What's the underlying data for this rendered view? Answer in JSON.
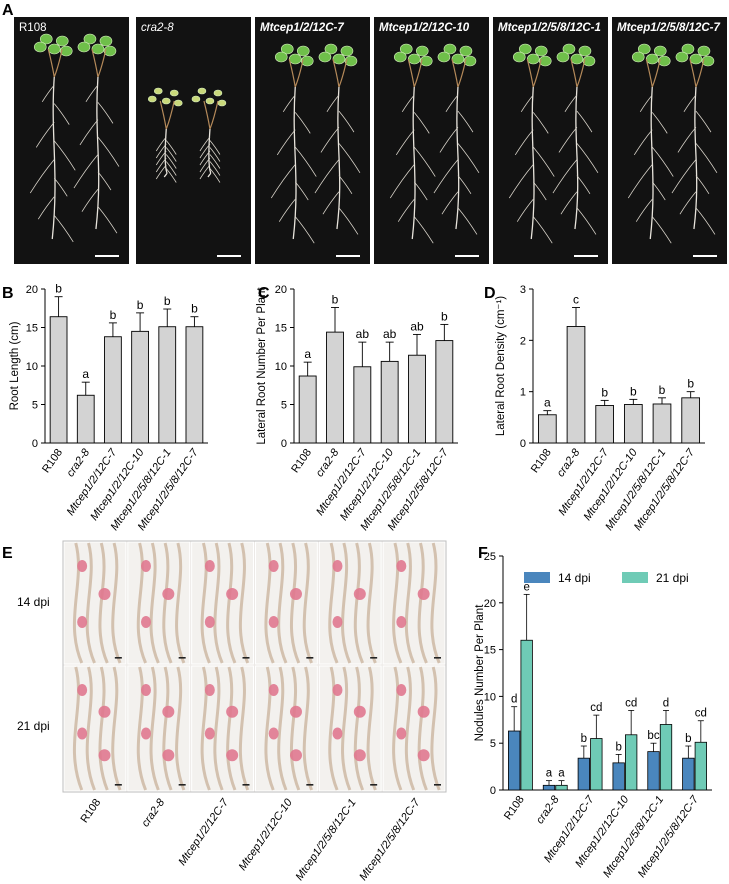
{
  "panel_letters": {
    "A": "A",
    "B": "B",
    "C": "C",
    "D": "D",
    "E": "E",
    "F": "F"
  },
  "genotypes": [
    "R108",
    "cra2-8",
    "Mtcep1/2/12C-7",
    "Mtcep1/2/12C-10",
    "Mtcep1/2/5/8/12C-1",
    "Mtcep1/2/5/8/12C-7"
  ],
  "photo_panel_A": {
    "labels": [
      "R108",
      "cra2-8",
      "Mtcep1/2/12C-7",
      "Mtcep1/2/12C-10",
      "Mtcep1/2/5/8/12C-1",
      "Mtcep1/2/5/8/12C-7"
    ]
  },
  "photo_panel_E": {
    "row_labels": [
      "14 dpi",
      "21 dpi"
    ],
    "column_labels": [
      "R108",
      "cra2-8",
      "Mtcep1/2/12C-7",
      "Mtcep1/2/12C-10",
      "Mtcep1/2/5/8/12C-1",
      "Mtcep1/2/5/8/12C-7"
    ]
  },
  "colors": {
    "bar_gray": "#d3d3d3",
    "dpi14": "#4a86bd",
    "dpi21": "#6fcbb6",
    "photo_bg_A": "#121212",
    "photo_bg_E": "#ece9e6"
  },
  "chart_data": [
    {
      "panel": "B",
      "type": "bar",
      "categories": [
        "R108",
        "cra2-8",
        "Mtcep1/2/12C-7",
        "Mtcep1/2/12C-10",
        "Mtcep1/2/5/8/12C-1",
        "Mtcep1/2/5/8/12C-7"
      ],
      "values": [
        16.4,
        6.2,
        13.8,
        14.5,
        15.1,
        15.1
      ],
      "errors": [
        2.6,
        1.7,
        1.8,
        2.4,
        2.3,
        1.3
      ],
      "letters": [
        "b",
        "a",
        "b",
        "b",
        "b",
        "b"
      ],
      "ylabel": "Root Length (cm)",
      "yticks": [
        "0",
        "5",
        "10",
        "15",
        "20"
      ],
      "ylim": [
        0,
        20
      ]
    },
    {
      "panel": "C",
      "type": "bar",
      "categories": [
        "R108",
        "cra2-8",
        "Mtcep1/2/12C-7",
        "Mtcep1/2/12C-10",
        "Mtcep1/2/5/8/12C-1",
        "Mtcep1/2/5/8/12C-7"
      ],
      "values": [
        8.7,
        14.4,
        9.9,
        10.6,
        11.4,
        13.3
      ],
      "errors": [
        1.8,
        3.2,
        3.2,
        2.5,
        2.7,
        2.1
      ],
      "letters": [
        "a",
        "b",
        "ab",
        "ab",
        "ab",
        "b"
      ],
      "ylabel": "Lateral Root Number Per Plant",
      "yticks": [
        "0",
        "5",
        "10",
        "15",
        "20"
      ],
      "ylim": [
        0,
        20
      ]
    },
    {
      "panel": "D",
      "type": "bar",
      "categories": [
        "R108",
        "cra2-8",
        "Mtcep1/2/12C-7",
        "Mtcep1/2/12C-10",
        "Mtcep1/2/5/8/12C-1",
        "Mtcep1/2/5/8/12C-7"
      ],
      "values": [
        0.55,
        2.27,
        0.73,
        0.75,
        0.76,
        0.88
      ],
      "errors": [
        0.08,
        0.37,
        0.1,
        0.1,
        0.12,
        0.12
      ],
      "letters": [
        "a",
        "c",
        "b",
        "b",
        "b",
        "b"
      ],
      "ylabel": "Lateral Root Density (cm⁻¹)",
      "yticks": [
        "0",
        "1",
        "2",
        "3"
      ],
      "ylim": [
        0,
        3
      ]
    },
    {
      "panel": "F",
      "type": "bar",
      "categories": [
        "R108",
        "cra2-8",
        "Mtcep1/2/12C-7",
        "Mtcep1/2/12C-10",
        "Mtcep1/2/5/8/12C-1",
        "Mtcep1/2/5/8/12C-7"
      ],
      "series": [
        {
          "name": "14 dpi",
          "values": [
            6.3,
            0.5,
            3.4,
            2.9,
            4.1,
            3.4
          ],
          "errors": [
            2.6,
            0.5,
            1.3,
            0.9,
            0.9,
            1.3
          ],
          "letters": [
            "d",
            "a",
            "b",
            "b",
            "bc",
            "b"
          ]
        },
        {
          "name": "21 dpi",
          "values": [
            16.0,
            0.5,
            5.5,
            5.9,
            7.0,
            5.1
          ],
          "errors": [
            4.9,
            0.5,
            2.5,
            2.6,
            1.5,
            2.3
          ],
          "letters": [
            "e",
            "a",
            "cd",
            "cd",
            "d",
            "cd"
          ]
        }
      ],
      "ylabel": "Nodules Number Per Plant",
      "yticks": [
        "0",
        "5",
        "10",
        "15",
        "20",
        "25"
      ],
      "ylim": [
        0,
        25
      ],
      "legend_position": "top"
    }
  ]
}
